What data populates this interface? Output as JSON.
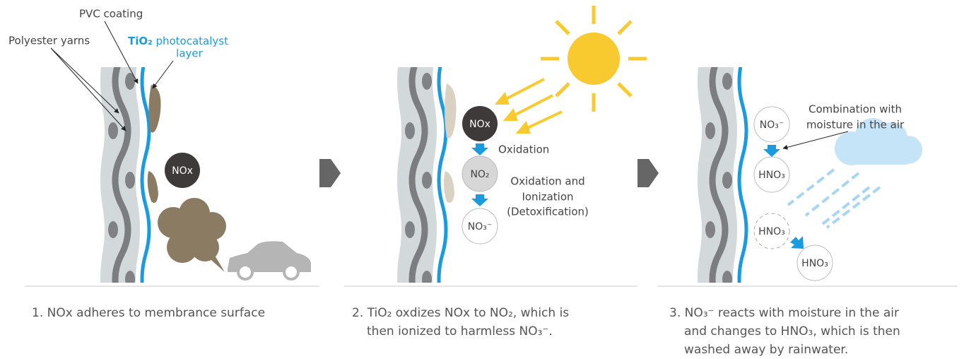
{
  "panels": [
    {
      "pvc_label": "PVC coating",
      "yarn_label": "Polyester yarns",
      "tio2_label": {
        "formula": "TiO₂",
        "lines": [
          "photocatalyst",
          "layer"
        ]
      },
      "nodes": [
        "NOx"
      ],
      "caption": [
        "1. NOx adheres to membrance surface"
      ]
    },
    {
      "nodes": [
        "NOx",
        "NO₂",
        "NO₃⁻"
      ],
      "step1": "Oxidation",
      "step2": [
        "Oxidation and",
        "Ionization",
        "(Detoxification)"
      ],
      "caption": [
        "2. TiO₂ oxdizes NOx to NO₂, which is",
        "then ionized to harmless NO₃⁻."
      ]
    },
    {
      "note": [
        "Combination with",
        "moisture in the air"
      ],
      "nodes": [
        "NO₃⁻",
        "HNO₃",
        "HNO₃",
        "HNO₃"
      ],
      "caption": [
        "3. NO₃⁻ reacts with moisture in the air",
        "and changes to HNO₃, which is then",
        "washed away by rainwater."
      ]
    }
  ]
}
